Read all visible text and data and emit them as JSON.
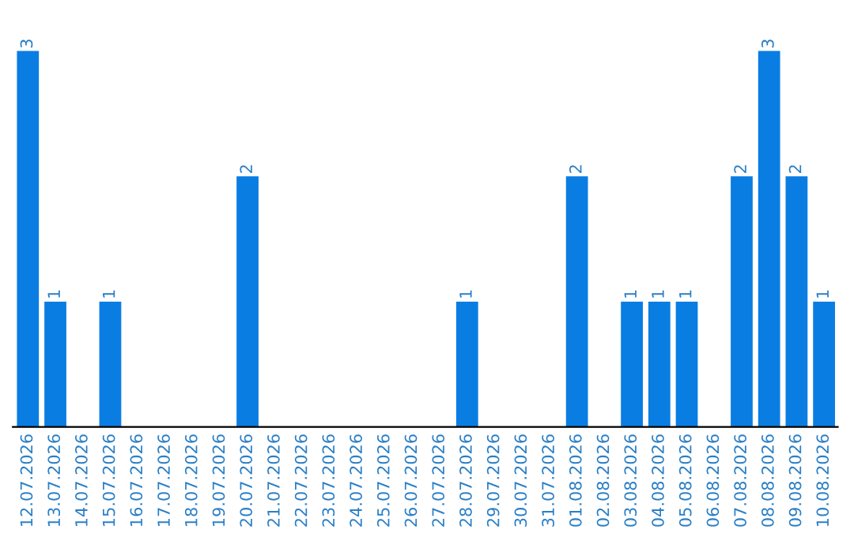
{
  "chart_data": {
    "type": "bar",
    "categories": [
      "12.07.2026",
      "13.07.2026",
      "14.07.2026",
      "15.07.2026",
      "16.07.2026",
      "17.07.2026",
      "18.07.2026",
      "19.07.2026",
      "20.07.2026",
      "21.07.2026",
      "22.07.2026",
      "23.07.2026",
      "24.07.2026",
      "25.07.2026",
      "26.07.2026",
      "27.07.2026",
      "28.07.2026",
      "29.07.2026",
      "30.07.2026",
      "31.07.2026",
      "01.08.2026",
      "02.08.2026",
      "03.08.2026",
      "04.08.2026",
      "05.08.2026",
      "06.08.2026",
      "07.08.2026",
      "08.08.2026",
      "09.08.2026",
      "10.08.2026"
    ],
    "values": [
      3,
      1,
      0,
      1,
      0,
      0,
      0,
      0,
      2,
      0,
      0,
      0,
      0,
      0,
      0,
      0,
      1,
      0,
      0,
      0,
      2,
      0,
      1,
      1,
      1,
      0,
      2,
      3,
      2,
      1
    ],
    "value_labels": [
      "3",
      "1",
      null,
      "1",
      null,
      null,
      null,
      null,
      "2",
      null,
      null,
      null,
      null,
      null,
      null,
      null,
      "1",
      null,
      null,
      null,
      "2",
      null,
      "1",
      "1",
      "1",
      null,
      "2",
      "3",
      "2",
      "1"
    ],
    "color": "#0a7de3",
    "grid": false,
    "legend": false
  }
}
